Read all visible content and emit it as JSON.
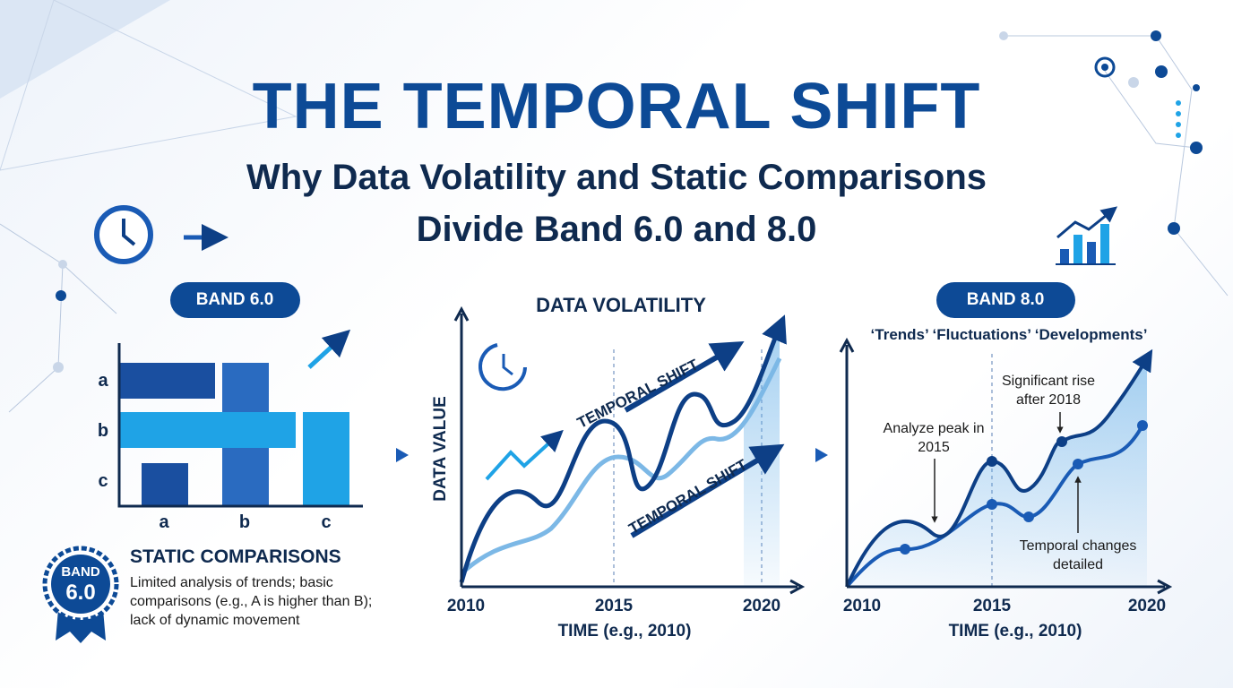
{
  "header": {
    "title": "THE TEMPORAL SHIFT",
    "subtitle_line1": "Why Data Volatility and Static Comparisons",
    "subtitle_line2": "Divide Band 6.0 and 8.0"
  },
  "left_panel": {
    "badge": "BAND 6.0",
    "row_labels": [
      "a",
      "b",
      "c"
    ],
    "column_labels": [
      "a",
      "b",
      "c"
    ],
    "heading": "STATIC COMPARISONS",
    "ribbon": [
      "BAND",
      "6.0"
    ],
    "description": "Limited analysis of trends; basic comparisons (e.g., A is higher than B); lack of dynamic movement"
  },
  "middle_panel": {
    "title": "DATA VOLATILITY",
    "y_axis_label": "DATA VALUE",
    "x_axis_label": "TIME (e.g., 2010)",
    "x_ticks": [
      "2010",
      "2015",
      "2020"
    ],
    "arrow_labels": [
      "TEMPORAL SHIFT",
      "TEMPORAL SHIFT"
    ]
  },
  "right_panel": {
    "badge": "BAND 8.0",
    "keywords": "‘Trends’ ‘Fluctuations’ ‘Developments’",
    "annotations": [
      "Significant rise after 2018",
      "Analyze peak in 2015",
      "Temporal changes detailed"
    ],
    "x_ticks": [
      "2010",
      "2015",
      "2020"
    ],
    "x_axis_label": "TIME (e.g., 2010)"
  }
}
